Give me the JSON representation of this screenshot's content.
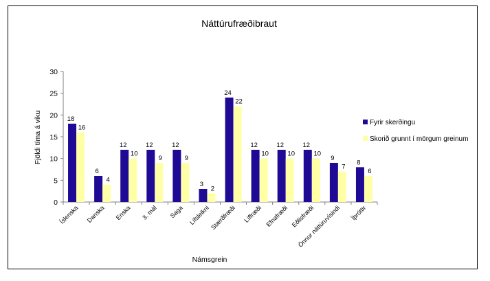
{
  "chart_data": {
    "type": "bar",
    "title": "Náttúrufræðibraut",
    "xlabel": "Námsgrein",
    "ylabel": "Fjöldi tíma á viku",
    "ylim": [
      0,
      30
    ],
    "yticks": [
      0,
      5,
      10,
      15,
      20,
      25,
      30
    ],
    "grid": false,
    "legend_position": "right",
    "categories": [
      "Íslenska",
      "Danska",
      "Enska",
      "3. mál",
      "Saga",
      "Lífsleikni",
      "Stærðfræði",
      "Líffræði",
      "Efnafræði",
      "Eðlisfræði",
      "Önnur náttúruvísindi",
      "Íþróttir"
    ],
    "series": [
      {
        "name": "Fyrir skerðingu",
        "color": "#1f0a96",
        "values": [
          18,
          6,
          12,
          12,
          12,
          3,
          24,
          12,
          12,
          12,
          9,
          8
        ]
      },
      {
        "name": "Skorið grunnt í mörgum greinum",
        "color": "#ffffa6",
        "values": [
          16,
          4,
          10,
          9,
          9,
          2,
          22,
          10,
          10,
          10,
          7,
          6
        ]
      }
    ]
  }
}
